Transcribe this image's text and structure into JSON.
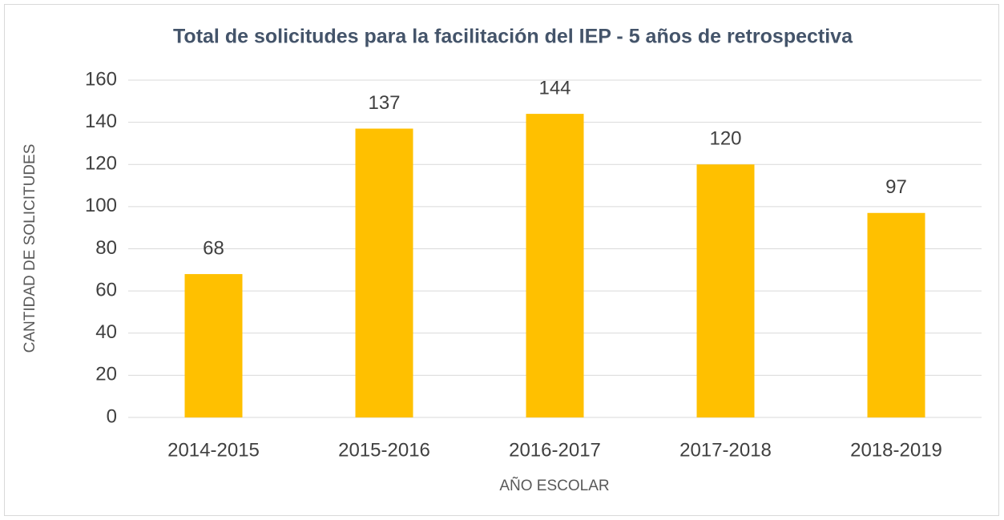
{
  "chart_data": {
    "type": "bar",
    "title": "Total de solicitudes para la facilitación del IEP - 5 años de retrospectiva",
    "x_label": "AÑO ESCOLAR",
    "y_label": "CANTIDAD DE SOLICITUDES",
    "categories": [
      "2014-2015",
      "2015-2016",
      "2016-2017",
      "2017-2018",
      "2018-2019"
    ],
    "values": [
      68,
      137,
      144,
      120,
      97
    ],
    "color": "#ffc000",
    "ylim": [
      0,
      160
    ],
    "yticks": [
      0,
      20,
      40,
      60,
      80,
      100,
      120,
      140,
      160
    ],
    "grid": true,
    "data_labels": true
  }
}
